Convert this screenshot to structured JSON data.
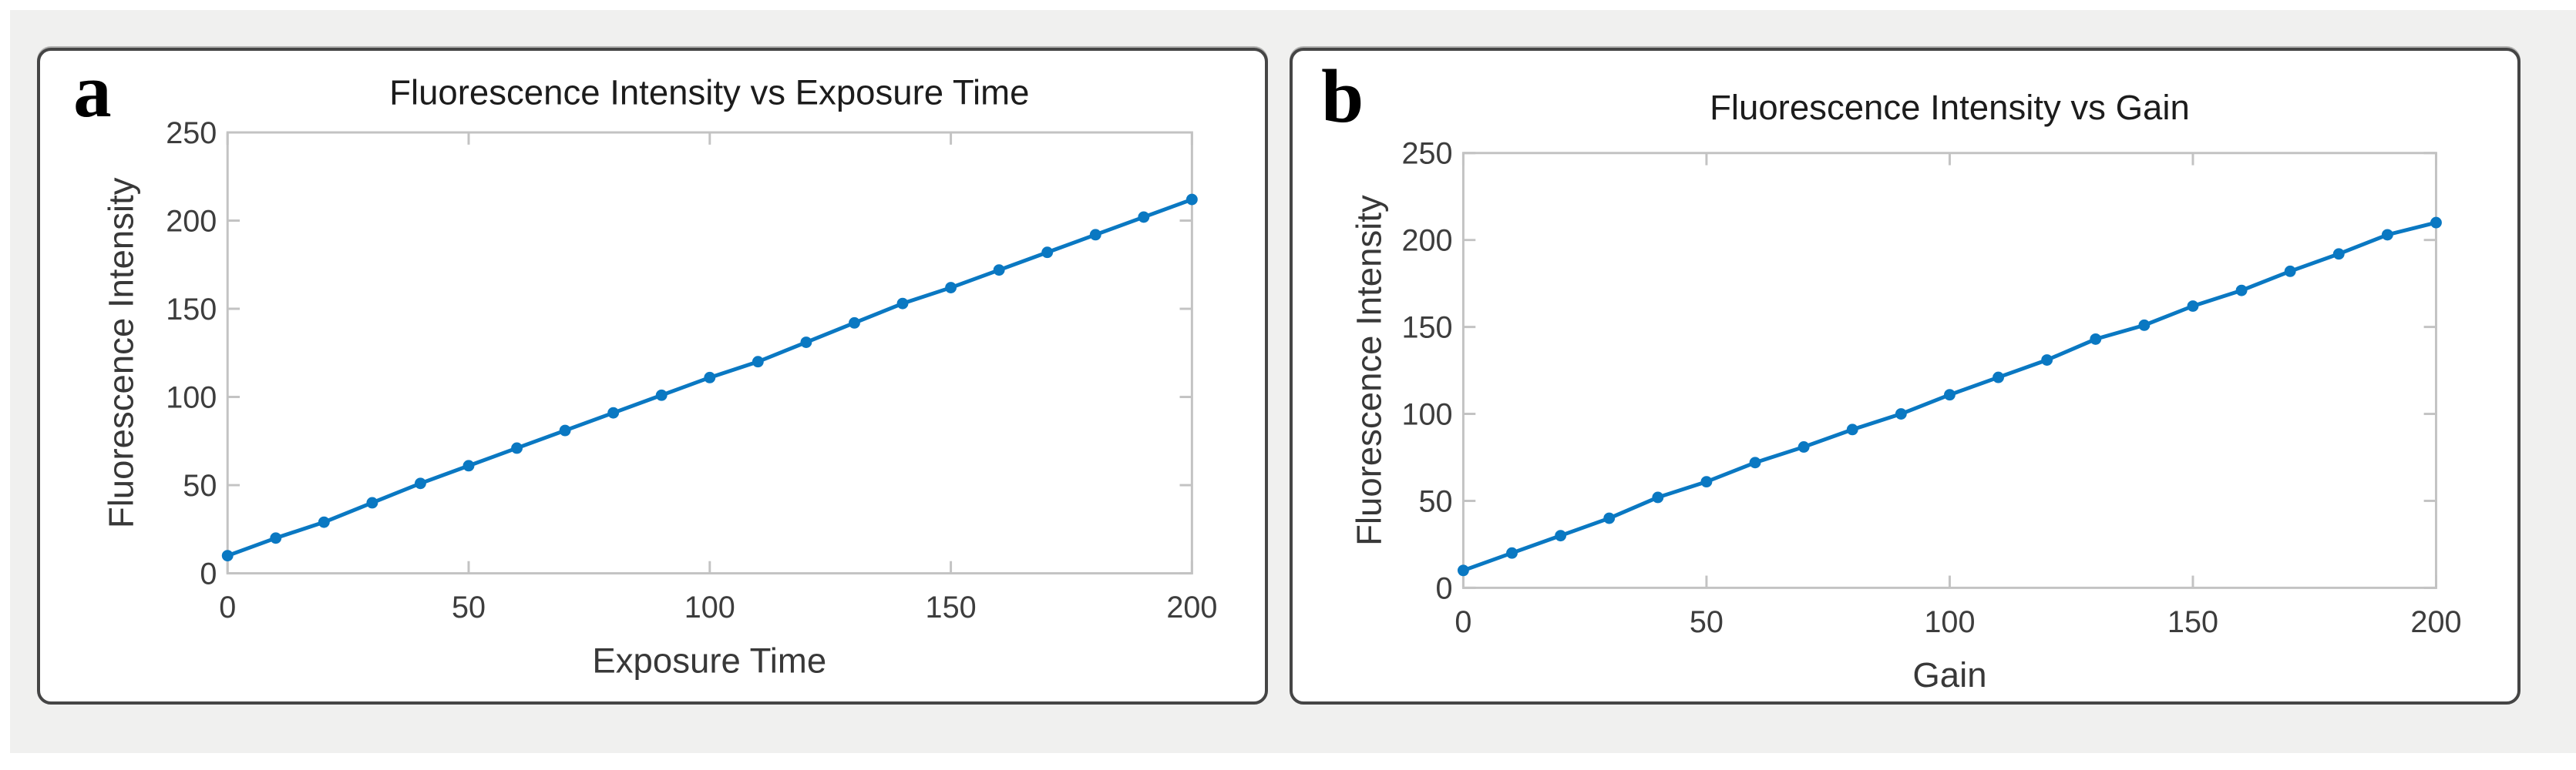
{
  "page": {
    "background": "#ffffff",
    "band_color": "#f0f0ef",
    "panel_border_color": "#454545",
    "panel_background": "#ffffff"
  },
  "chart_data": [
    {
      "type": "line",
      "panel_label": "a",
      "title": "Fluorescence Intensity vs Exposure Time",
      "xlabel": "Exposure Time",
      "ylabel": "Fluorescence Intensity",
      "xlim": [
        0,
        200
      ],
      "ylim": [
        0,
        250
      ],
      "x_ticks": [
        0,
        50,
        100,
        150,
        200
      ],
      "y_ticks": [
        0,
        50,
        100,
        150,
        200,
        250
      ],
      "grid": false,
      "legend": "none",
      "marker": "circle",
      "line_color": "#0a78c2",
      "axis_color": "#c3c3c3",
      "text_color": "#3d3d3d",
      "x": [
        0,
        10,
        20,
        30,
        40,
        50,
        60,
        70,
        80,
        90,
        100,
        110,
        120,
        130,
        140,
        150,
        160,
        170,
        180,
        190,
        200
      ],
      "y": [
        10,
        20,
        29,
        40,
        51,
        61,
        71,
        81,
        91,
        101,
        111,
        120,
        131,
        142,
        153,
        162,
        172,
        182,
        192,
        202,
        212
      ]
    },
    {
      "type": "line",
      "panel_label": "b",
      "title": "Fluorescence Intensity vs Gain",
      "xlabel": "Gain",
      "ylabel": "Fluorescence Intensity",
      "xlim": [
        0,
        200
      ],
      "ylim": [
        0,
        250
      ],
      "x_ticks": [
        0,
        50,
        100,
        150,
        200
      ],
      "y_ticks": [
        0,
        50,
        100,
        150,
        200,
        250
      ],
      "grid": false,
      "legend": "none",
      "marker": "circle",
      "line_color": "#0a78c2",
      "axis_color": "#c3c3c3",
      "text_color": "#3d3d3d",
      "x": [
        0,
        10,
        20,
        30,
        40,
        50,
        60,
        70,
        80,
        90,
        100,
        110,
        120,
        130,
        140,
        150,
        160,
        170,
        180,
        190,
        200
      ],
      "y": [
        10,
        20,
        30,
        40,
        52,
        61,
        72,
        81,
        91,
        100,
        111,
        121,
        131,
        143,
        151,
        162,
        171,
        182,
        192,
        203,
        210
      ]
    }
  ]
}
